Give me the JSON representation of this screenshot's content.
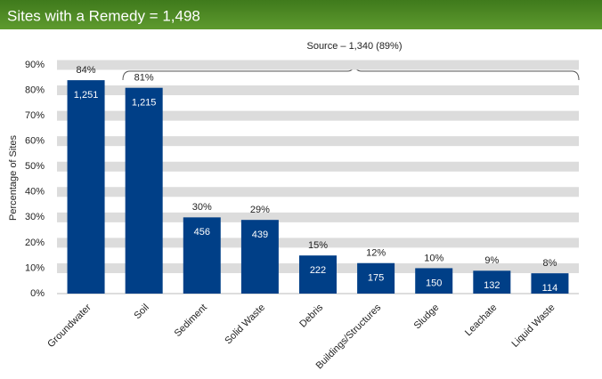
{
  "header": {
    "title": "Sites with a Remedy = 1,498"
  },
  "chart_data": {
    "type": "bar",
    "annotation": "Source – 1,340 (89%)",
    "ylabel": "Percentage of Sites",
    "categories": [
      "Groundwater",
      "Soil",
      "Sediment",
      "Solid Waste",
      "Debris",
      "Buildings/Structures",
      "Sludge",
      "Leachate",
      "Liquid Waste"
    ],
    "values": [
      84,
      81,
      30,
      29,
      15,
      12,
      10,
      9,
      8
    ],
    "value_labels": [
      "84%",
      "81%",
      "30%",
      "29%",
      "15%",
      "12%",
      "10%",
      "9%",
      "8%"
    ],
    "counts": [
      {
        "value": 1251,
        "label": "1,251"
      },
      {
        "value": 1215,
        "label": "1,215"
      },
      {
        "value": 456,
        "label": "456"
      },
      {
        "value": 439,
        "label": "439"
      },
      {
        "value": 222,
        "label": "222"
      },
      {
        "value": 175,
        "label": "175"
      },
      {
        "value": 150,
        "label": "150"
      },
      {
        "value": 132,
        "label": "132"
      },
      {
        "value": 114,
        "label": "114"
      }
    ],
    "color": "#003f87",
    "ylim": [
      0,
      90
    ],
    "yticks": [
      {
        "value": 0,
        "label": "0%"
      },
      {
        "value": 10,
        "label": "10%"
      },
      {
        "value": 20,
        "label": "20%"
      },
      {
        "value": 30,
        "label": "30%"
      },
      {
        "value": 40,
        "label": "40%"
      },
      {
        "value": 50,
        "label": "50%"
      },
      {
        "value": 60,
        "label": "60%"
      },
      {
        "value": 70,
        "label": "70%"
      },
      {
        "value": 80,
        "label": "80%"
      },
      {
        "value": 90,
        "label": "90%"
      }
    ],
    "grid": true
  }
}
